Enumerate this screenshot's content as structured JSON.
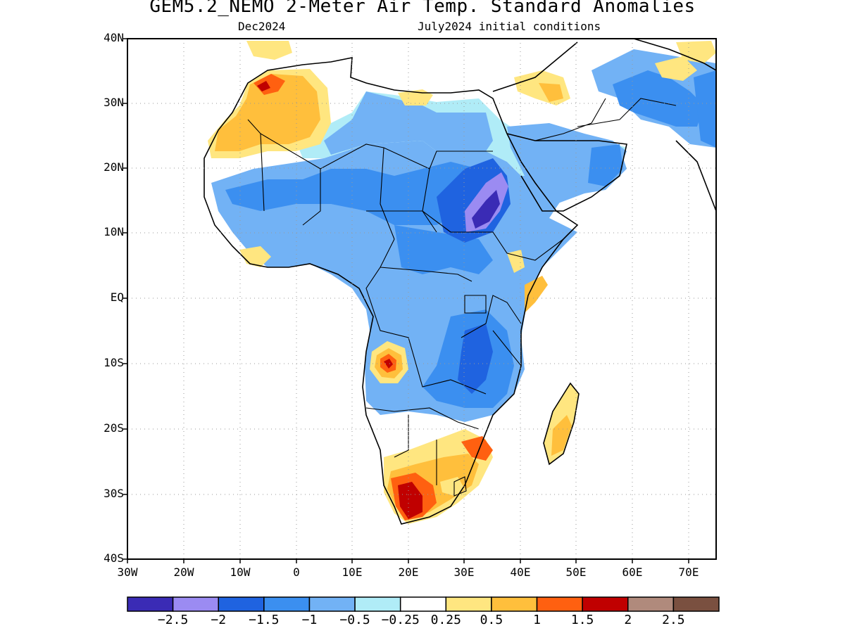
{
  "title": "GEM5.2_NEMO 2-Meter Air Temp. Standard Anomalies",
  "subtitle_left": "Dec2024",
  "subtitle_right": "July2024 initial conditions",
  "lat_labels": [
    "40N",
    "30N",
    "20N",
    "10N",
    "EQ",
    "10S",
    "20S",
    "30S",
    "40S"
  ],
  "lon_labels": [
    "30W",
    "20W",
    "10W",
    "0",
    "10E",
    "20E",
    "30E",
    "40E",
    "50E",
    "60E",
    "70E"
  ],
  "colorbar": {
    "colors": [
      "#3a2bb5",
      "#9b8bf2",
      "#1f63e0",
      "#3b8ff0",
      "#72b2f5",
      "#b0ecf7",
      "#ffffff",
      "#ffe680",
      "#ffbf3c",
      "#ff6010",
      "#c00000",
      "#b08a7c",
      "#7a5040"
    ],
    "labels": [
      "-2.5",
      "-2",
      "-1.5",
      "-1",
      "-0.5",
      "-0.25",
      "0.25",
      "0.5",
      "1",
      "1.5",
      "2",
      "2.5"
    ]
  },
  "map_data": {
    "lon_range": [
      -30,
      75
    ],
    "lat_range": [
      -40,
      40
    ],
    "regions": [
      {
        "name": "west-africa-cool",
        "value": -0.5
      },
      {
        "name": "sahel-cool",
        "value": -1
      },
      {
        "name": "sudan-strong-cool",
        "value": -2.5
      },
      {
        "name": "central-africa-cool",
        "value": -0.5
      },
      {
        "name": "east-africa-cool",
        "value": -1
      },
      {
        "name": "arabia-cool",
        "value": -0.5
      },
      {
        "name": "iran-cool",
        "value": -1
      },
      {
        "name": "morocco-warm",
        "value": 1
      },
      {
        "name": "angola-hot-spot",
        "value": 2
      },
      {
        "name": "south-africa-warm",
        "value": 1.5
      },
      {
        "name": "madagascar-warm",
        "value": 0.5
      }
    ]
  }
}
